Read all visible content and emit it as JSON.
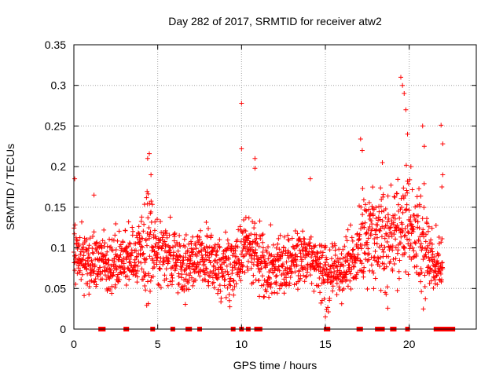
{
  "chart_data": {
    "type": "scatter",
    "title": "Day 282 of 2017, SRMTID for receiver atw2",
    "xlabel": "GPS time / hours",
    "ylabel": "SRMTID / TECUs",
    "xlim": [
      0,
      24
    ],
    "ylim": [
      0,
      0.35
    ],
    "grid": true,
    "marker": "+",
    "marker_color": "#ff0000",
    "x_ticks": [
      0,
      5,
      10,
      15,
      20
    ],
    "x_tick_labels": [
      "0",
      "5",
      "10",
      "15",
      "20"
    ],
    "y_ticks": [
      0,
      0.05,
      0.1,
      0.15,
      0.2,
      0.25,
      0.3,
      0.35
    ],
    "y_tick_labels": [
      "0",
      "0.05",
      "0.1",
      "0.15",
      "0.2",
      "0.25",
      "0.3",
      "0.35"
    ],
    "series": [
      {
        "name": "SRMTID",
        "trend": [
          {
            "x": 0.0,
            "y": 0.09
          },
          {
            "x": 0.5,
            "y": 0.085
          },
          {
            "x": 1.0,
            "y": 0.08
          },
          {
            "x": 1.5,
            "y": 0.085
          },
          {
            "x": 2.0,
            "y": 0.075
          },
          {
            "x": 2.5,
            "y": 0.08
          },
          {
            "x": 3.0,
            "y": 0.085
          },
          {
            "x": 3.5,
            "y": 0.09
          },
          {
            "x": 4.0,
            "y": 0.1
          },
          {
            "x": 4.5,
            "y": 0.105
          },
          {
            "x": 5.0,
            "y": 0.095
          },
          {
            "x": 5.5,
            "y": 0.09
          },
          {
            "x": 6.0,
            "y": 0.085
          },
          {
            "x": 6.5,
            "y": 0.08
          },
          {
            "x": 7.0,
            "y": 0.08
          },
          {
            "x": 7.5,
            "y": 0.085
          },
          {
            "x": 8.0,
            "y": 0.09
          },
          {
            "x": 8.5,
            "y": 0.08
          },
          {
            "x": 9.0,
            "y": 0.075
          },
          {
            "x": 9.5,
            "y": 0.08
          },
          {
            "x": 10.0,
            "y": 0.09
          },
          {
            "x": 10.5,
            "y": 0.1
          },
          {
            "x": 11.0,
            "y": 0.09
          },
          {
            "x": 11.5,
            "y": 0.075
          },
          {
            "x": 12.0,
            "y": 0.075
          },
          {
            "x": 12.5,
            "y": 0.08
          },
          {
            "x": 13.0,
            "y": 0.085
          },
          {
            "x": 13.5,
            "y": 0.085
          },
          {
            "x": 14.0,
            "y": 0.09
          },
          {
            "x": 14.5,
            "y": 0.08
          },
          {
            "x": 15.0,
            "y": 0.07
          },
          {
            "x": 15.5,
            "y": 0.07
          },
          {
            "x": 16.0,
            "y": 0.075
          },
          {
            "x": 16.5,
            "y": 0.08
          },
          {
            "x": 17.0,
            "y": 0.1
          },
          {
            "x": 17.5,
            "y": 0.115
          },
          {
            "x": 18.0,
            "y": 0.11
          },
          {
            "x": 18.5,
            "y": 0.11
          },
          {
            "x": 19.0,
            "y": 0.115
          },
          {
            "x": 19.5,
            "y": 0.13
          },
          {
            "x": 20.0,
            "y": 0.13
          },
          {
            "x": 20.5,
            "y": 0.12
          },
          {
            "x": 21.0,
            "y": 0.1
          },
          {
            "x": 21.5,
            "y": 0.08
          },
          {
            "x": 22.0,
            "y": 0.08
          }
        ],
        "outliers": [
          {
            "x": 0.05,
            "y": 0.185
          },
          {
            "x": 1.2,
            "y": 0.165
          },
          {
            "x": 4.4,
            "y": 0.21
          },
          {
            "x": 4.5,
            "y": 0.216
          },
          {
            "x": 4.6,
            "y": 0.19
          },
          {
            "x": 10.0,
            "y": 0.278
          },
          {
            "x": 10.0,
            "y": 0.222
          },
          {
            "x": 10.8,
            "y": 0.21
          },
          {
            "x": 10.8,
            "y": 0.198
          },
          {
            "x": 14.1,
            "y": 0.185
          },
          {
            "x": 17.1,
            "y": 0.234
          },
          {
            "x": 17.2,
            "y": 0.22
          },
          {
            "x": 18.4,
            "y": 0.205
          },
          {
            "x": 19.5,
            "y": 0.31
          },
          {
            "x": 19.6,
            "y": 0.3
          },
          {
            "x": 19.7,
            "y": 0.29
          },
          {
            "x": 19.8,
            "y": 0.27
          },
          {
            "x": 19.9,
            "y": 0.24
          },
          {
            "x": 20.1,
            "y": 0.2
          },
          {
            "x": 20.8,
            "y": 0.25
          },
          {
            "x": 20.9,
            "y": 0.225
          },
          {
            "x": 21.9,
            "y": 0.251
          },
          {
            "x": 22.0,
            "y": 0.228
          },
          {
            "x": 22.0,
            "y": 0.19
          },
          {
            "x": 21.95,
            "y": 0.175
          },
          {
            "x": 15.0,
            "y": 0.015
          }
        ],
        "zero_values_x": [
          1.6,
          1.75,
          3.1,
          3.15,
          4.7,
          5.9,
          6.8,
          6.9,
          7.5,
          9.5,
          10.0,
          10.4,
          10.9,
          11.0,
          11.05,
          11.1,
          15.05,
          15.15,
          17.0,
          17.1,
          18.1,
          18.2,
          18.3,
          18.4,
          19.0,
          19.1,
          19.9,
          21.6,
          21.8,
          22.0,
          22.2,
          22.4,
          22.6
        ]
      }
    ]
  }
}
